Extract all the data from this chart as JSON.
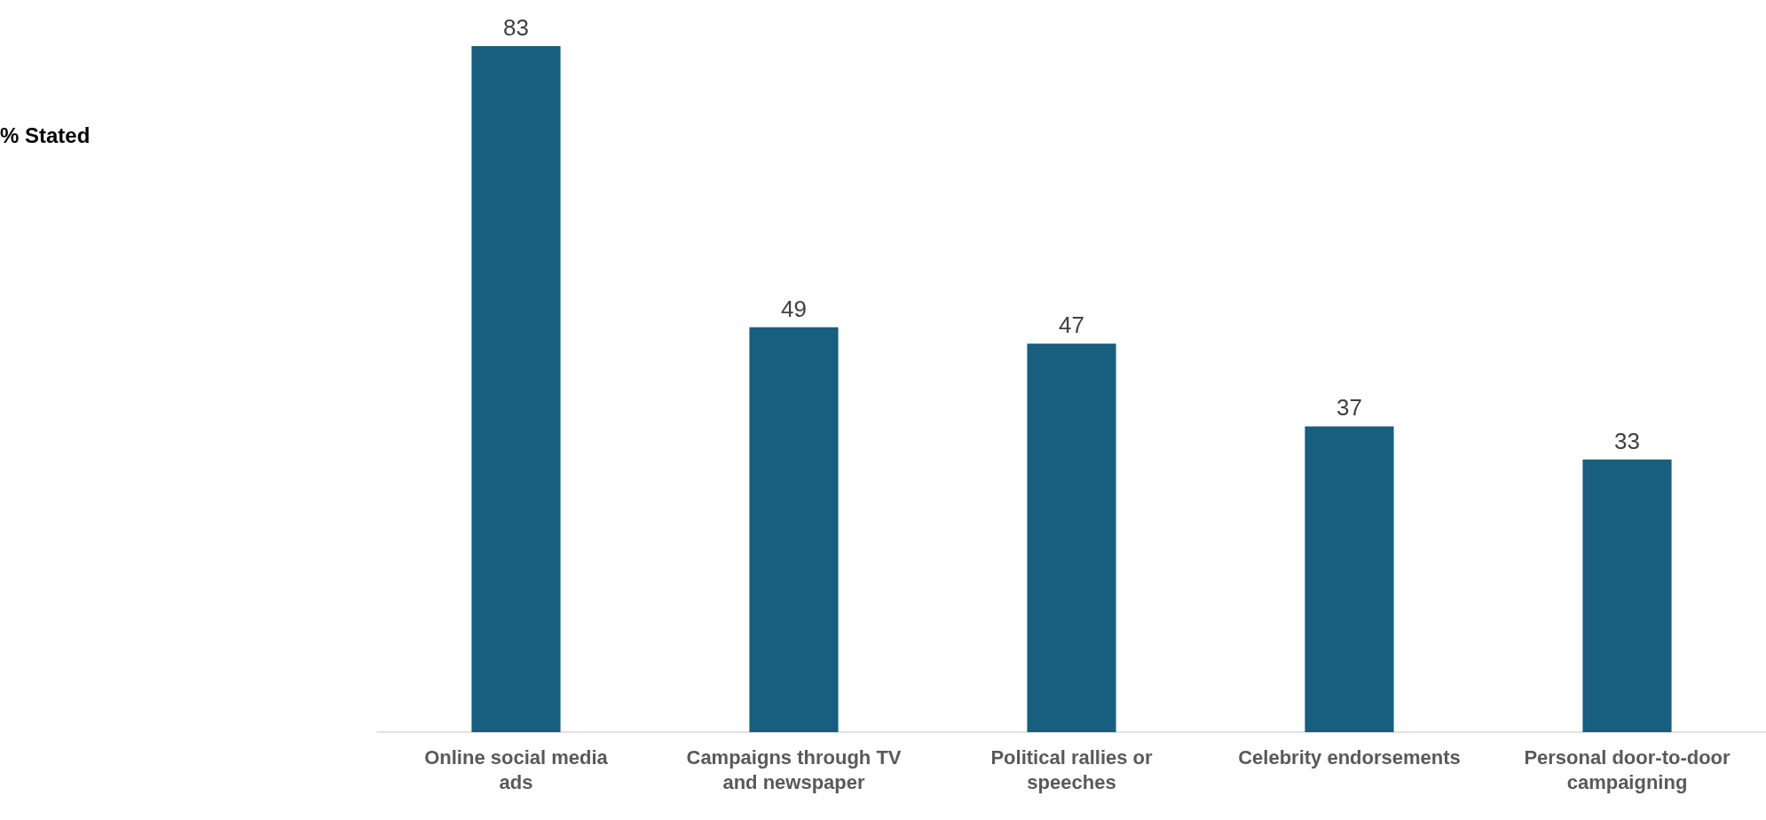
{
  "chart_data": {
    "type": "bar",
    "annotations": [
      "% Stated"
    ],
    "categories": [
      "Online social media ads",
      "Campaigns through TV and newspaper",
      "Political rallies or speeches",
      "Celebrity endorsements",
      "Personal door-to-door campaigning"
    ],
    "values": [
      83,
      49,
      47,
      37,
      33
    ],
    "color": "#175e7f",
    "data_labels": true
  }
}
